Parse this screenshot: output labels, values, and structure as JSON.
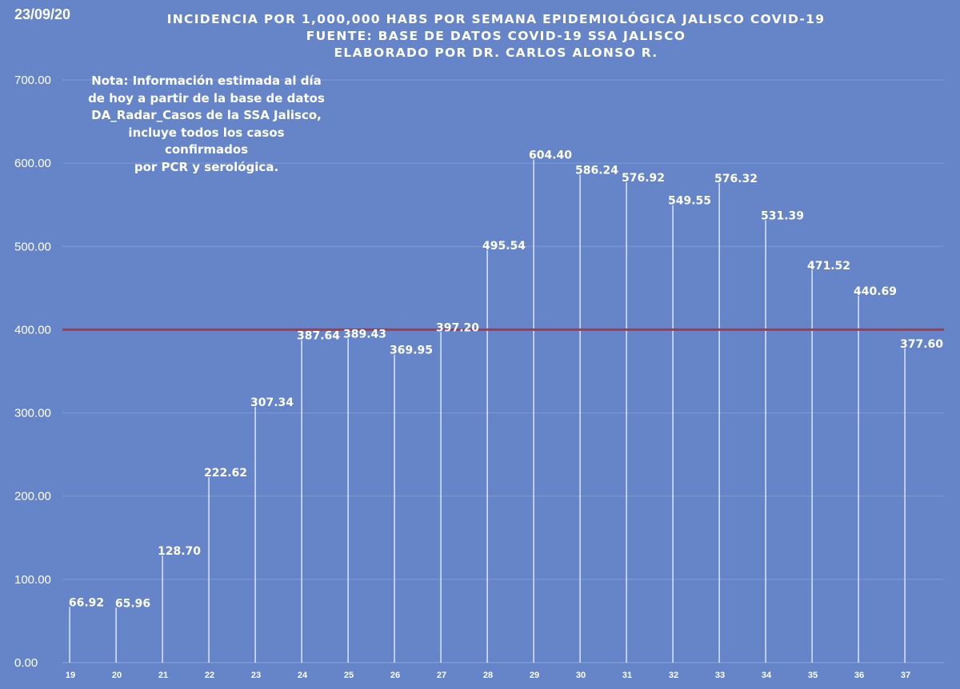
{
  "date": "23/09/20",
  "title_lines": [
    "INCIDENCIA POR 1,000,000 HABS POR SEMANA EPIDEMIOLÓGICA JALISCO COVID-19",
    "FUENTE: BASE DE DATOS COVID-19 SSA JALISCO",
    "ELABORADO POR DR. CARLOS ALONSO R."
  ],
  "note_lines": [
    "Nota: Información estimada al día",
    "de hoy a partir de la base de datos",
    "DA_Radar_Casos de la SSA Jalisco,",
    "incluye todos los casos confirmados",
    "por PCR y serológica."
  ],
  "colors": {
    "background": "#6585c8",
    "bars": "#ffffff",
    "reference_line": "#a83a4a",
    "grid": "#7f9bd4"
  },
  "chart_data": {
    "type": "bar",
    "categories": [
      "19",
      "20",
      "21",
      "22",
      "23",
      "24",
      "25",
      "26",
      "27",
      "28",
      "29",
      "30",
      "31",
      "32",
      "33",
      "34",
      "35",
      "36",
      "37"
    ],
    "values": [
      66.92,
      65.96,
      128.7,
      222.62,
      307.34,
      387.64,
      389.43,
      369.95,
      397.2,
      495.54,
      604.4,
      586.24,
      576.92,
      549.55,
      576.32,
      531.39,
      471.52,
      440.69,
      377.6
    ],
    "value_labels": [
      "66.92",
      "65.96",
      "128.70",
      "222.62",
      "307.34",
      "387.64",
      "389.43",
      "369.95",
      "397.20",
      "495.54",
      "604.40",
      "586.24",
      "576.92",
      "549.55",
      "576.32",
      "531.39",
      "471.52",
      "440.69",
      "377.60"
    ],
    "yticks": [
      0,
      100,
      200,
      300,
      400,
      500,
      600,
      700
    ],
    "ytick_labels": [
      "0.00",
      "100.00",
      "200.00",
      "300.00",
      "400.00",
      "500.00",
      "600.00",
      "700.00"
    ],
    "ylim": [
      0,
      700
    ],
    "reference_line": 400,
    "grid": true,
    "legend": "none"
  }
}
